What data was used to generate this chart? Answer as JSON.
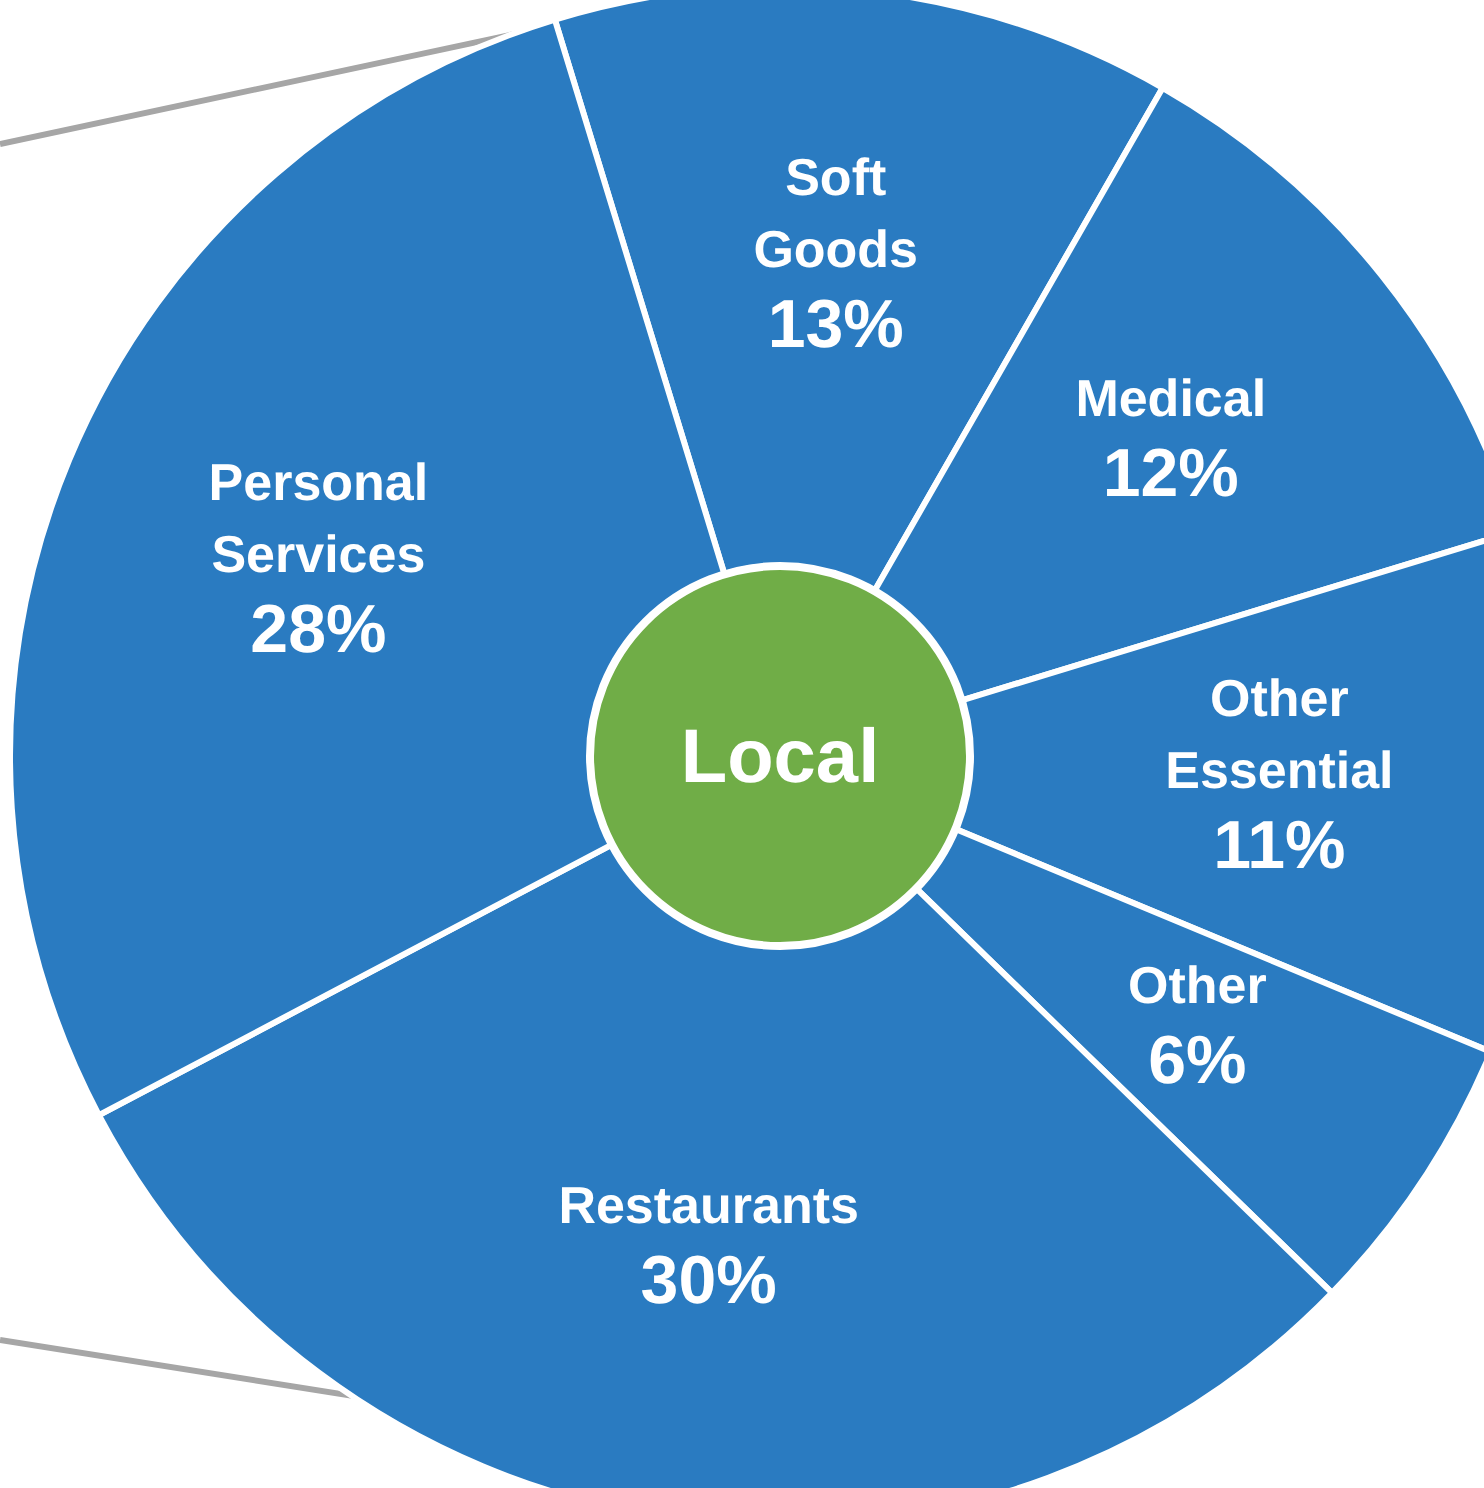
{
  "chart_data": {
    "type": "donut",
    "categories": [
      "Soft Goods",
      "Medical",
      "Other Essential",
      "Other",
      "Restaurants",
      "Personal Services"
    ],
    "values": [
      13,
      12,
      11,
      6,
      30,
      28
    ],
    "colors": [
      "#2a7bc1",
      "#2a7bc1",
      "#2a7bc1",
      "#2a7bc1",
      "#2a7bc1",
      "#2a7bc1"
    ],
    "value_labels": [
      "13%",
      "12%",
      "11%",
      "6%",
      "30%",
      "28%"
    ],
    "annotations": [
      "Local"
    ]
  }
}
